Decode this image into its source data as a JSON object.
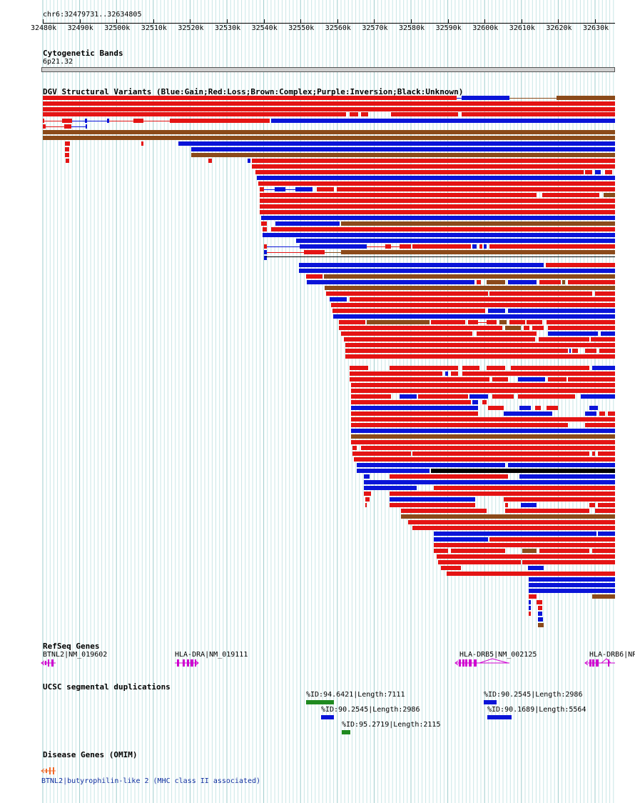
{
  "position": {
    "label": "chr6:32479731..32634805",
    "start": 32479731,
    "end": 32634805
  },
  "ruler": {
    "ticks": [
      "32480k",
      "32490k",
      "32500k",
      "32510k",
      "32520k",
      "32530k",
      "32540k",
      "32550k",
      "32560k",
      "32570k",
      "32580k",
      "32590k",
      "32600k",
      "32610k",
      "32620k",
      "32630k"
    ]
  },
  "cytoband": {
    "title": "Cytogenetic Bands",
    "band": "6p21.32"
  },
  "dgv": {
    "title": "DGV Structural Variants (Blue:Gain;Red:Loss;Brown:Complex;Purple:Inversion;Black:Unknown)",
    "colors": {
      "gain": "#0a14d8",
      "loss": "#e41414",
      "complex": "#8b4a1a",
      "inversion": "#8b2be2",
      "unknown": "#000000"
    }
  },
  "refseq": {
    "title": "RefSeq Genes",
    "color": "#d000d0",
    "genes": [
      {
        "label": "BTNL2|NM_019602"
      },
      {
        "label": "HLA-DRA|NM_019111"
      },
      {
        "label": "HLA-DRB5|NM_002125"
      },
      {
        "label": "HLA-DRB6|NR"
      }
    ]
  },
  "segdups": {
    "title": "UCSC segmental duplications",
    "items": [
      {
        "label": "%ID:94.6421|Length:7111",
        "color": "#1f8a1f"
      },
      {
        "label": "%ID:90.2545|Length:2986",
        "color": "#0a14d8"
      },
      {
        "label": "%ID:95.2719|Length:2115",
        "color": "#1f8a1f"
      },
      {
        "label": "%ID:90.2545|Length:2986",
        "color": "#0a14d8"
      },
      {
        "label": "%ID:90.1689|Length:5564",
        "color": "#0a14d8"
      }
    ]
  },
  "omim": {
    "title": "Disease Genes (OMIM)",
    "label": "BTNL2|butyrophilin-like 2 (MHC class II associated)",
    "color": "#ee6a2a",
    "label_color": "#1030a0"
  }
}
